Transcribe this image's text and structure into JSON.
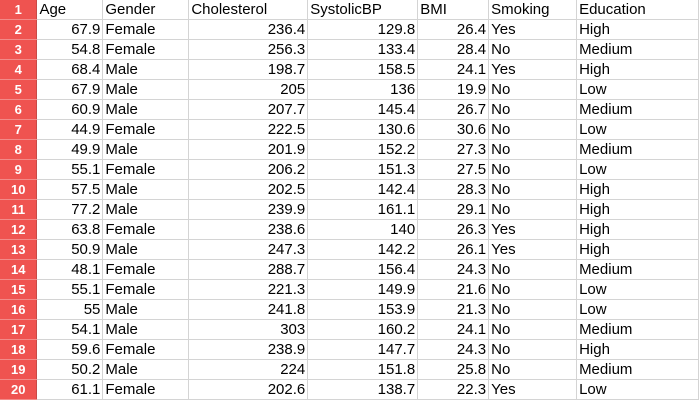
{
  "colors": {
    "row_header_bg": "#ef5350",
    "row_header_text": "#ffffff",
    "grid_line": "#d4d4d4"
  },
  "header_row": {
    "row_number": "1",
    "cells": [
      "Age",
      "Gender",
      "Cholesterol",
      "SystolicBP",
      "BMI",
      "Smoking",
      "Education"
    ]
  },
  "rows": [
    {
      "n": "2",
      "age": "67.9",
      "gender": "Female",
      "chol": "236.4",
      "sbp": "129.8",
      "bmi": "26.4",
      "smoking": "Yes",
      "edu": "High"
    },
    {
      "n": "3",
      "age": "54.8",
      "gender": "Female",
      "chol": "256.3",
      "sbp": "133.4",
      "bmi": "28.4",
      "smoking": "No",
      "edu": "Medium"
    },
    {
      "n": "4",
      "age": "68.4",
      "gender": "Male",
      "chol": "198.7",
      "sbp": "158.5",
      "bmi": "24.1",
      "smoking": "Yes",
      "edu": "High"
    },
    {
      "n": "5",
      "age": "67.9",
      "gender": "Male",
      "chol": "205",
      "sbp": "136",
      "bmi": "19.9",
      "smoking": "No",
      "edu": "Low"
    },
    {
      "n": "6",
      "age": "60.9",
      "gender": "Male",
      "chol": "207.7",
      "sbp": "145.4",
      "bmi": "26.7",
      "smoking": "No",
      "edu": "Medium"
    },
    {
      "n": "7",
      "age": "44.9",
      "gender": "Female",
      "chol": "222.5",
      "sbp": "130.6",
      "bmi": "30.6",
      "smoking": "No",
      "edu": "Low"
    },
    {
      "n": "8",
      "age": "49.9",
      "gender": "Male",
      "chol": "201.9",
      "sbp": "152.2",
      "bmi": "27.3",
      "smoking": "No",
      "edu": "Medium"
    },
    {
      "n": "9",
      "age": "55.1",
      "gender": "Female",
      "chol": "206.2",
      "sbp": "151.3",
      "bmi": "27.5",
      "smoking": "No",
      "edu": "Low"
    },
    {
      "n": "10",
      "age": "57.5",
      "gender": "Male",
      "chol": "202.5",
      "sbp": "142.4",
      "bmi": "28.3",
      "smoking": "No",
      "edu": "High"
    },
    {
      "n": "11",
      "age": "77.2",
      "gender": "Male",
      "chol": "239.9",
      "sbp": "161.1",
      "bmi": "29.1",
      "smoking": "No",
      "edu": "High"
    },
    {
      "n": "12",
      "age": "63.8",
      "gender": "Female",
      "chol": "238.6",
      "sbp": "140",
      "bmi": "26.3",
      "smoking": "Yes",
      "edu": "High"
    },
    {
      "n": "13",
      "age": "50.9",
      "gender": "Male",
      "chol": "247.3",
      "sbp": "142.2",
      "bmi": "26.1",
      "smoking": "Yes",
      "edu": "High"
    },
    {
      "n": "14",
      "age": "48.1",
      "gender": "Female",
      "chol": "288.7",
      "sbp": "156.4",
      "bmi": "24.3",
      "smoking": "No",
      "edu": "Medium"
    },
    {
      "n": "15",
      "age": "55.1",
      "gender": "Female",
      "chol": "221.3",
      "sbp": "149.9",
      "bmi": "21.6",
      "smoking": "No",
      "edu": "Low"
    },
    {
      "n": "16",
      "age": "55",
      "gender": "Male",
      "chol": "241.8",
      "sbp": "153.9",
      "bmi": "21.3",
      "smoking": "No",
      "edu": "Low"
    },
    {
      "n": "17",
      "age": "54.1",
      "gender": "Male",
      "chol": "303",
      "sbp": "160.2",
      "bmi": "24.1",
      "smoking": "No",
      "edu": "Medium"
    },
    {
      "n": "18",
      "age": "59.6",
      "gender": "Female",
      "chol": "238.9",
      "sbp": "147.7",
      "bmi": "24.3",
      "smoking": "No",
      "edu": "High"
    },
    {
      "n": "19",
      "age": "50.2",
      "gender": "Male",
      "chol": "224",
      "sbp": "151.8",
      "bmi": "25.8",
      "smoking": "No",
      "edu": "Medium"
    },
    {
      "n": "20",
      "age": "61.1",
      "gender": "Female",
      "chol": "202.6",
      "sbp": "138.7",
      "bmi": "22.3",
      "smoking": "Yes",
      "edu": "Low"
    }
  ]
}
